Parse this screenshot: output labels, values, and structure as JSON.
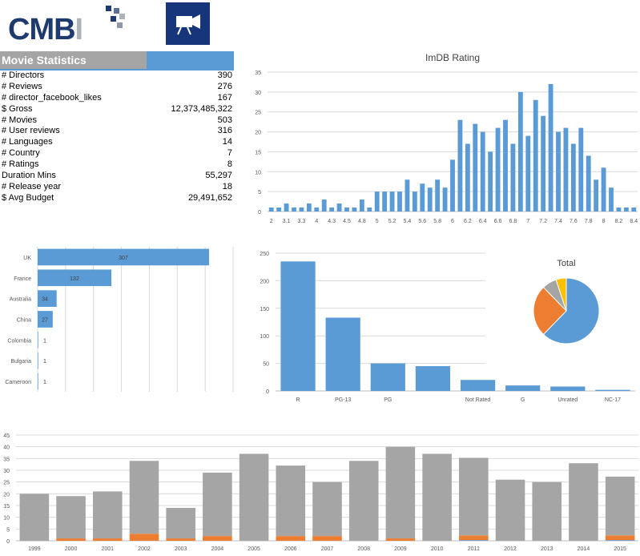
{
  "logo": {
    "text_main": "CMB",
    "text_accent": "I"
  },
  "icons": {
    "camera": "movie-camera-icon"
  },
  "colors": {
    "blue": "#5b9bd5",
    "orange": "#ed7d31",
    "grey": "#a5a5a5",
    "yellow": "#ffc000",
    "navy": "#16357a"
  },
  "stats": {
    "title": "Movie Statistics",
    "rows": [
      {
        "label": "# Directors",
        "value": "390"
      },
      {
        "label": "# Reviews",
        "value": "276"
      },
      {
        "label": "# director_facebook_likes",
        "value": "167"
      },
      {
        "label": "$ Gross",
        "value": "12,373,485,322"
      },
      {
        "label": "# Movies",
        "value": "503"
      },
      {
        "label": "# User reviews",
        "value": "316"
      },
      {
        "label": "# Languages",
        "value": "14"
      },
      {
        "label": "# Country",
        "value": "7"
      },
      {
        "label": "# Ratings",
        "value": "8"
      },
      {
        "label": "Duration Mins",
        "value": "55,297"
      },
      {
        "label": "# Release year",
        "value": "18"
      },
      {
        "label": "$ Avg Budget",
        "value": "29,491,652"
      }
    ]
  },
  "chart_data": [
    {
      "type": "bar",
      "title": "ImDB Rating",
      "ylim": [
        0,
        35
      ],
      "yticks": [
        0,
        5,
        10,
        15,
        20,
        25,
        30,
        35
      ],
      "grid": true,
      "x": [
        "2",
        "",
        "3.1",
        "",
        "3.3",
        "",
        "4",
        "",
        "4.3",
        "",
        "4.5",
        "",
        "4.8",
        "",
        "5",
        "",
        "5.2",
        "",
        "5.4",
        "",
        "5.6",
        "",
        "5.8",
        "",
        "6",
        "",
        "6.2",
        "",
        "6.4",
        "",
        "6.6",
        "",
        "6.8",
        "",
        "7",
        "",
        "7.2",
        "",
        "7.4",
        "",
        "7.6",
        "",
        "7.8",
        "",
        "8",
        "",
        "8.2",
        "",
        "8.4"
      ],
      "values": [
        1,
        1,
        2,
        1,
        1,
        2,
        1,
        3,
        1,
        2,
        1,
        1,
        3,
        1,
        5,
        5,
        5,
        5,
        8,
        5,
        7,
        6,
        8,
        6,
        13,
        23,
        17,
        22,
        20,
        15,
        21,
        23,
        17,
        30,
        19,
        28,
        24,
        32,
        20,
        21,
        17,
        21,
        14,
        8,
        11,
        6,
        1,
        1,
        1
      ]
    },
    {
      "type": "bar",
      "orientation": "horizontal",
      "categories": [
        "UK",
        "France",
        "Australia",
        "China",
        "Colombia",
        "Bulgaria",
        "Cameroon"
      ],
      "values": [
        307,
        132,
        34,
        27,
        1,
        1,
        1
      ],
      "xlim": [
        0,
        350
      ],
      "grid": true
    },
    {
      "type": "bar",
      "categories": [
        "R",
        "PG-13",
        "PG",
        "",
        "Not Rated",
        "G",
        "Unrated",
        "NC-17"
      ],
      "values": [
        235,
        133,
        50,
        45,
        20,
        10,
        8,
        2
      ],
      "ylim": [
        0,
        250
      ],
      "yticks": [
        0,
        50,
        100,
        150,
        200,
        250
      ],
      "grid": true
    },
    {
      "type": "pie",
      "title": "Total",
      "values": [
        61,
        25,
        7,
        5
      ]
    },
    {
      "type": "bar",
      "stacked": true,
      "categories": [
        "1999",
        "2000",
        "2001",
        "2002",
        "2003",
        "2004",
        "2005",
        "2006",
        "2007",
        "2008",
        "2009",
        "2010",
        "2011",
        "2012",
        "2013",
        "2014",
        "2015"
      ],
      "series": [
        {
          "values": [
            0,
            0,
            0,
            0,
            0,
            0,
            0,
            0,
            0,
            0,
            0,
            0,
            0.3,
            0,
            0,
            0,
            0.3
          ]
        },
        {
          "values": [
            0,
            1,
            1,
            3,
            1,
            2,
            0,
            2,
            2,
            0,
            1,
            0,
            2,
            0,
            0,
            0,
            2
          ]
        },
        {
          "values": [
            20,
            18,
            20,
            31,
            13,
            27,
            37,
            30,
            23,
            34,
            39,
            37,
            33,
            26,
            25,
            33,
            25
          ]
        }
      ],
      "ylim": [
        0,
        45
      ],
      "yticks": [
        0,
        5,
        10,
        15,
        20,
        25,
        30,
        35,
        40,
        45
      ],
      "grid": true
    }
  ]
}
